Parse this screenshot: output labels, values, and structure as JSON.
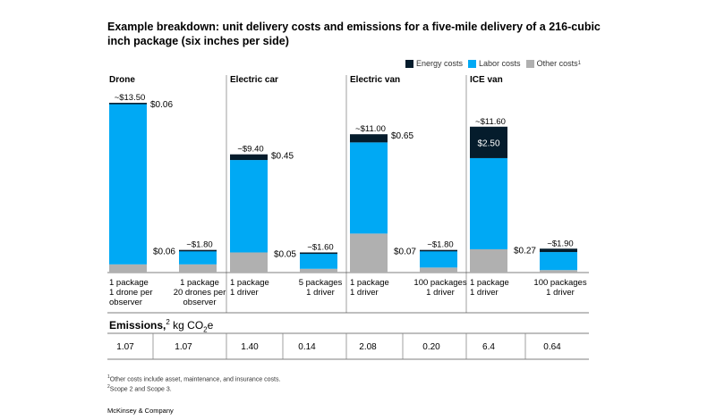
{
  "title": "Example breakdown: unit delivery costs and emissions for a five-mile delivery of a 216-cubic inch package (six inches per side)",
  "legend": [
    {
      "label": "Energy costs",
      "color": "#051c2c"
    },
    {
      "label": "Labor costs",
      "color": "#00a9f4"
    },
    {
      "label": "Other costs",
      "color": "#b0b0b0",
      "sup": "1"
    }
  ],
  "emissions": {
    "label": "Emissions,",
    "sup": "2",
    "unit": "kg CO",
    "unit_sub": "2",
    "unit_tail": "e"
  },
  "footnotes": [
    {
      "sup": "1",
      "text": "Other costs include asset, maintenance, and insurance costs."
    },
    {
      "sup": "2",
      "text": "Scope 2 and Scope 3."
    }
  ],
  "brand": "McKinsey & Company",
  "chart_data": {
    "type": "bar",
    "stacked": true,
    "unit": "$ per package",
    "ylim": [
      0,
      14
    ],
    "series_order": [
      "Other costs",
      "Labor costs",
      "Energy costs"
    ],
    "groups": [
      {
        "name": "Drone",
        "bars": [
          {
            "label_lines": [
              "1 package",
              "1 drone per",
              "observer"
            ],
            "total_label": "~$13.50",
            "energy_label": "$0.06",
            "other": 0.65,
            "labor": 12.79,
            "energy": 0.06,
            "emissions": "1.07"
          },
          {
            "label_lines": [
              "1 package",
              "20 drones per",
              "observer"
            ],
            "total_label": "~$1.80",
            "energy_label": "$0.06",
            "other": 0.65,
            "labor": 1.09,
            "energy": 0.06,
            "emissions": "1.07"
          }
        ]
      },
      {
        "name": "Electric car",
        "bars": [
          {
            "label_lines": [
              "1 package",
              "1 driver"
            ],
            "total_label": "~$9.40",
            "energy_label": "$0.45",
            "other": 1.6,
            "labor": 7.35,
            "energy": 0.45,
            "emissions": "1.40"
          },
          {
            "label_lines": [
              "5 packages",
              "1 driver"
            ],
            "total_label": "~$1.60",
            "energy_label": "$0.05",
            "other": 0.3,
            "labor": 1.25,
            "energy": 0.05,
            "emissions": "0.14"
          }
        ]
      },
      {
        "name": "Electric van",
        "bars": [
          {
            "label_lines": [
              "1 package",
              "1 driver"
            ],
            "total_label": "~$11.00",
            "energy_label": "$0.65",
            "other": 3.1,
            "labor": 7.25,
            "energy": 0.65,
            "emissions": "2.08"
          },
          {
            "label_lines": [
              "100 packages",
              "1 driver"
            ],
            "total_label": "~$1.80",
            "energy_label": "$0.07",
            "other": 0.4,
            "labor": 1.33,
            "energy": 0.07,
            "emissions": "0.20"
          }
        ]
      },
      {
        "name": "ICE van",
        "bars": [
          {
            "label_lines": [
              "1 package",
              "1 driver"
            ],
            "total_label": "~$11.60",
            "energy_label": "$2.50",
            "energy_label_inside": true,
            "other": 1.85,
            "labor": 7.25,
            "energy": 2.5,
            "emissions": "6.4"
          },
          {
            "label_lines": [
              "100 packages",
              "1 driver"
            ],
            "total_label": "~$1.90",
            "energy_label": "$0.27",
            "other": 0.2,
            "labor": 1.43,
            "energy": 0.27,
            "emissions": "0.64"
          }
        ]
      }
    ]
  }
}
